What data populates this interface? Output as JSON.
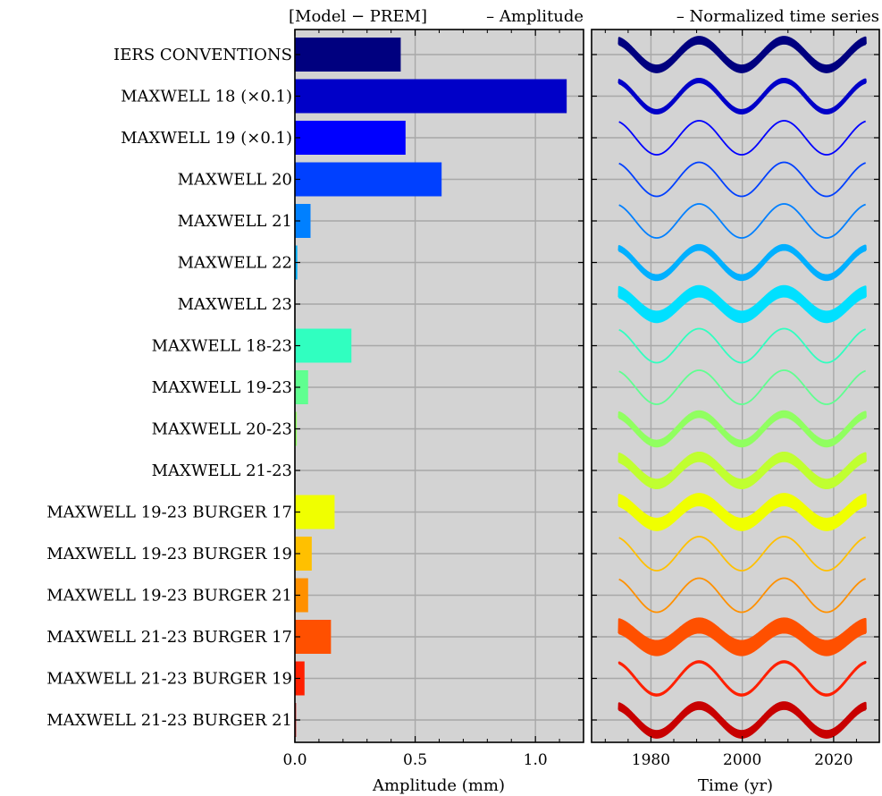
{
  "chart_data": [
    {
      "type": "bar",
      "orientation": "horizontal",
      "header": "[Model − PREM]",
      "title": "– Amplitude",
      "xlabel": "Amplitude (mm)",
      "xlim": [
        0,
        1.2
      ],
      "xticks": [
        0.0,
        0.5,
        1.0
      ],
      "xtick_labels": [
        "0.0",
        "0.5",
        "1.0"
      ],
      "grid": true,
      "categories": [
        "IERS CONVENTIONS",
        "MAXWELL 18 (×0.1)",
        "MAXWELL 19 (×0.1)",
        "MAXWELL 20",
        "MAXWELL 21",
        "MAXWELL 22",
        "MAXWELL 23",
        "MAXWELL 18-23",
        "MAXWELL 19-23",
        "MAXWELL 20-23",
        "MAXWELL 21-23",
        "MAXWELL 19-23 BURGER 17",
        "MAXWELL 19-23 BURGER 19",
        "MAXWELL 19-23 BURGER 21",
        "MAXWELL 21-23 BURGER 17",
        "MAXWELL 21-23 BURGER 19",
        "MAXWELL 21-23 BURGER 21"
      ],
      "values": [
        0.44,
        1.13,
        0.46,
        0.61,
        0.065,
        0.01,
        0.0,
        0.235,
        0.055,
        0.008,
        0.0,
        0.165,
        0.07,
        0.055,
        0.15,
        0.04,
        0.005
      ],
      "colors": [
        "#00007f",
        "#0000c8",
        "#0000ff",
        "#0040ff",
        "#0080ff",
        "#00b0ff",
        "#00e0ff",
        "#30ffc0",
        "#60ff90",
        "#90ff60",
        "#c0ff30",
        "#f0ff00",
        "#ffc000",
        "#ff9000",
        "#ff5000",
        "#ff2000",
        "#c80000"
      ]
    },
    {
      "type": "line",
      "title": "– Normalized time series",
      "xlabel": "Time (yr)",
      "xlim": [
        1967,
        2030
      ],
      "xticks": [
        1980,
        2000,
        2020
      ],
      "xtick_labels": [
        "1980",
        "2000",
        "2020"
      ],
      "grid": true,
      "period_yr": 18.6,
      "series": [
        {
          "index": 0,
          "noise": 0.35,
          "phase": 0.0
        },
        {
          "index": 1,
          "noise": 0.18,
          "phase": 0.0
        },
        {
          "index": 2,
          "noise": 0.0,
          "phase": 0.0
        },
        {
          "index": 3,
          "noise": 0.0,
          "phase": 0.0
        },
        {
          "index": 4,
          "noise": 0.0,
          "phase": 0.0
        },
        {
          "index": 5,
          "noise": 0.25,
          "phase": 0.0
        },
        {
          "index": 6,
          "noise": 0.55,
          "phase": 0.0
        },
        {
          "index": 7,
          "noise": 0.0,
          "phase": 0.0
        },
        {
          "index": 8,
          "noise": 0.0,
          "phase": 0.0
        },
        {
          "index": 9,
          "noise": 0.3,
          "phase": 0.0
        },
        {
          "index": 10,
          "noise": 0.45,
          "phase": 0.0
        },
        {
          "index": 11,
          "noise": 0.6,
          "phase": 0.0
        },
        {
          "index": 12,
          "noise": 0.0,
          "phase": 0.0
        },
        {
          "index": 13,
          "noise": 0.0,
          "phase": 0.0
        },
        {
          "index": 14,
          "noise": 0.75,
          "phase": 0.0
        },
        {
          "index": 15,
          "noise": 0.05,
          "phase": 0.0
        },
        {
          "index": 16,
          "noise": 0.35,
          "phase": 0.0
        }
      ]
    }
  ]
}
